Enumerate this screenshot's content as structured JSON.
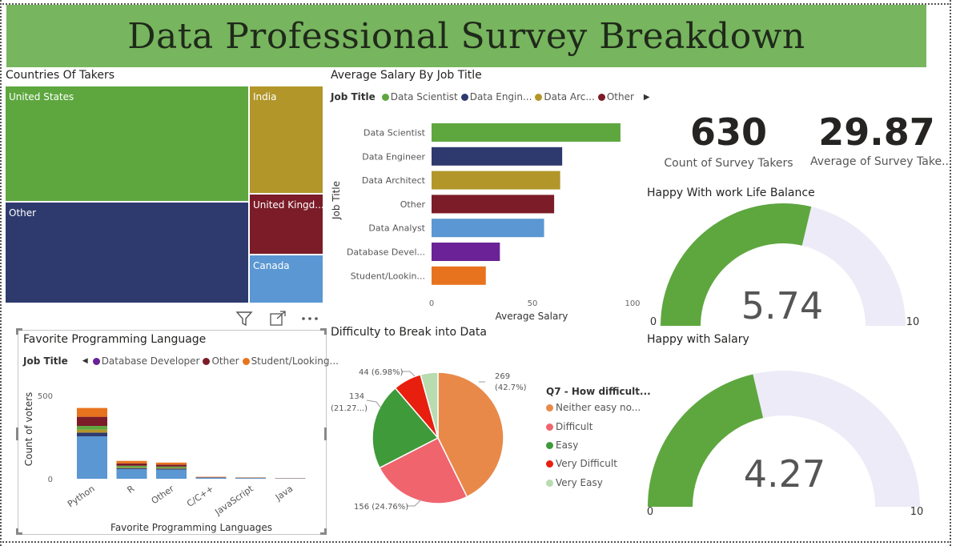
{
  "header": {
    "title": "Data  Professional Survey Breakdown"
  },
  "colors": {
    "green": "#5ea73f",
    "navy": "#2e3a6e",
    "gold": "#b2962a",
    "maroon": "#7b1c28",
    "lightblue": "#5b97d2",
    "purple": "#6a2296",
    "orange": "#e8731e"
  },
  "treemap": {
    "title": "Countries Of Takers",
    "items": [
      {
        "label": "United States",
        "color": "#5ea73f"
      },
      {
        "label": "Other",
        "color": "#2e3a6e"
      },
      {
        "label": "India",
        "color": "#b2962a"
      },
      {
        "label": "United Kingd...",
        "color": "#7b1c28"
      },
      {
        "label": "Canada",
        "color": "#5b97d2"
      }
    ]
  },
  "salary_chart": {
    "title": "Average Salary By Job Title",
    "legend_title": "Job Title",
    "legend": [
      {
        "label": "Data Scientist",
        "color": "#5ea73f"
      },
      {
        "label": "Data Engin...",
        "color": "#2e3a6e"
      },
      {
        "label": "Data Arc...",
        "color": "#b2962a"
      },
      {
        "label": "Other",
        "color": "#7b1c28"
      }
    ],
    "xlabel": "Average Salary",
    "ylabel": "Job Title",
    "ticks": [
      "0",
      "50",
      "100"
    ]
  },
  "cards": {
    "count_value": "630",
    "count_label": "Count of Survey Takers",
    "age_value": "29.87",
    "age_label": "Average of Survey Take..."
  },
  "gauge_wlb": {
    "title": "Happy With work Life Balance",
    "value": 5.74,
    "value_text": "5.74",
    "min": "0",
    "max": "10"
  },
  "gauge_salary": {
    "title": "Happy with Salary",
    "value": 4.27,
    "value_text": "4.27",
    "min": "0",
    "max": "10"
  },
  "language_chart": {
    "title": "Favorite Programming Language",
    "legend_title": "Job Title",
    "legend": [
      {
        "label": "Database Developer",
        "color": "#6a2296"
      },
      {
        "label": "Other",
        "color": "#7b1c28"
      },
      {
        "label": "Student/Looking...",
        "color": "#e8731e"
      }
    ],
    "xlabel": "Favorite Programming Languages",
    "ylabel": "Count of voters",
    "ticks": [
      "0",
      "500"
    ]
  },
  "pie_chart": {
    "title": "Difficulty to Break into Data",
    "legend_title": "Q7 - How difficult...",
    "legend": [
      {
        "label": "Neither easy no...",
        "color": "#e8894a"
      },
      {
        "label": "Difficult",
        "color": "#f0646e"
      },
      {
        "label": "Easy",
        "color": "#3f9a3a"
      },
      {
        "label": "Very Difficult",
        "color": "#e81e0e"
      },
      {
        "label": "Very Easy",
        "color": "#b8dbb0"
      }
    ],
    "labels": {
      "neither_1": "269",
      "neither_2": "(42.7%)",
      "difficult": "156 (24.76%)",
      "easy_1": "134",
      "easy_2": "(21.27...)",
      "very_difficult": "44 (6.98%)"
    }
  },
  "chart_data": [
    {
      "type": "treemap",
      "title": "Countries Of Takers",
      "categories": [
        "United States",
        "Other",
        "India",
        "United Kingd...",
        "Canada"
      ],
      "values": [
        262,
        232,
        68,
        46,
        22
      ]
    },
    {
      "type": "bar",
      "orientation": "horizontal",
      "title": "Average Salary By Job Title",
      "categories": [
        "Data Scientist",
        "Data Engineer",
        "Data Architect",
        "Other",
        "Data Analyst",
        "Database Devel...",
        "Student/Lookin..."
      ],
      "values": [
        94,
        65,
        64,
        61,
        56,
        34,
        27
      ],
      "colors": [
        "#5ea73f",
        "#2e3a6e",
        "#b2962a",
        "#7b1c28",
        "#5b97d2",
        "#6a2296",
        "#e8731e"
      ],
      "xlabel": "Average Salary",
      "ylabel": "Job Title",
      "xlim": [
        0,
        100
      ]
    },
    {
      "type": "bar",
      "stacked": true,
      "title": "Favorite Programming Language",
      "categories": [
        "Python",
        "R",
        "Other",
        "C/C++",
        "JavaScript",
        "Java"
      ],
      "series": [
        {
          "name": "Data Analyst",
          "color": "#5b97d2",
          "values": [
            255,
            58,
            55,
            6,
            4,
            2
          ]
        },
        {
          "name": "Data Architect",
          "color": "#2e3a6e",
          "values": [
            22,
            6,
            6,
            1,
            1,
            0
          ]
        },
        {
          "name": "Data Engineer",
          "color": "#b2962a",
          "values": [
            18,
            4,
            4,
            0,
            0,
            0
          ]
        },
        {
          "name": "Data Scientist",
          "color": "#5ea73f",
          "values": [
            22,
            10,
            8,
            1,
            1,
            0
          ]
        },
        {
          "name": "Other",
          "color": "#7b1c28",
          "values": [
            55,
            14,
            12,
            2,
            1,
            1
          ]
        },
        {
          "name": "Student/Looking...",
          "color": "#e8731e",
          "values": [
            53,
            15,
            12,
            2,
            1,
            1
          ]
        }
      ],
      "xlabel": "Favorite Programming Languages",
      "ylabel": "Count of voters",
      "ylim": [
        0,
        500
      ]
    },
    {
      "type": "pie",
      "title": "Difficulty to Break into Data",
      "categories": [
        "Neither easy no...",
        "Difficult",
        "Easy",
        "Very Difficult",
        "Very Easy"
      ],
      "values": [
        269,
        156,
        134,
        44,
        27
      ],
      "colors": [
        "#e8894a",
        "#f0646e",
        "#3f9a3a",
        "#e81e0e",
        "#b8dbb0"
      ]
    },
    {
      "type": "gauge",
      "title": "Happy With work Life Balance",
      "value": 5.74,
      "range": [
        0,
        10
      ]
    },
    {
      "type": "gauge",
      "title": "Happy with Salary",
      "value": 4.27,
      "range": [
        0,
        10
      ]
    }
  ]
}
